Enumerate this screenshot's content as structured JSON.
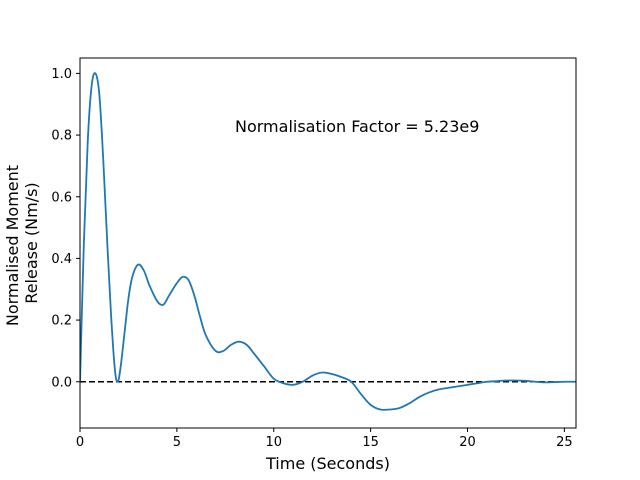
{
  "chart_data": {
    "type": "line",
    "title": "",
    "xlabel": "Time (Seconds)",
    "ylabel_lines": [
      "Normalised Moment",
      "Release (Nm/s)"
    ],
    "xlim": [
      0,
      25.6
    ],
    "ylim": [
      -0.15,
      1.05
    ],
    "xticks": [
      0,
      5,
      10,
      15,
      20,
      25
    ],
    "yticks": [
      0.0,
      0.2,
      0.4,
      0.6,
      0.8,
      1.0
    ],
    "xtick_labels": [
      "0",
      "5",
      "10",
      "15",
      "20",
      "25"
    ],
    "ytick_labels": [
      "0.0",
      "0.2",
      "0.4",
      "0.6",
      "0.8",
      "1.0"
    ],
    "grid": false,
    "annotation": {
      "text": "Normalisation Factor = 5.23e9",
      "x": 8.0,
      "y": 0.81
    },
    "reference_line": {
      "y": 0.0,
      "style": "dashed",
      "color": "#000000"
    },
    "series": [
      {
        "color": "#1f77b4",
        "x": [
          0,
          0.2,
          0.4,
          0.6,
          0.8,
          1.0,
          1.2,
          1.4,
          1.6,
          1.8,
          1.95,
          2.1,
          2.3,
          2.5,
          2.7,
          3.0,
          3.3,
          3.6,
          4.0,
          4.3,
          4.6,
          5.0,
          5.3,
          5.6,
          5.9,
          6.2,
          6.5,
          7.0,
          7.4,
          7.8,
          8.2,
          8.6,
          9.0,
          9.5,
          10.0,
          10.5,
          11.0,
          11.5,
          12.0,
          12.5,
          13.0,
          13.5,
          14.0,
          14.5,
          15.0,
          15.5,
          16.0,
          16.5,
          17.0,
          17.5,
          18.0,
          18.5,
          19.0,
          19.5,
          20.0,
          20.5,
          21.0,
          21.5,
          22.0,
          22.5,
          23.0,
          23.5,
          24.0,
          24.5,
          25.0,
          25.6
        ],
        "y": [
          0.0,
          0.45,
          0.78,
          0.96,
          1.0,
          0.93,
          0.72,
          0.46,
          0.22,
          0.04,
          0.0,
          0.05,
          0.16,
          0.27,
          0.34,
          0.38,
          0.36,
          0.31,
          0.26,
          0.25,
          0.28,
          0.32,
          0.34,
          0.33,
          0.28,
          0.21,
          0.15,
          0.1,
          0.1,
          0.12,
          0.13,
          0.12,
          0.09,
          0.05,
          0.01,
          -0.005,
          -0.01,
          0.0,
          0.02,
          0.03,
          0.025,
          0.015,
          0.0,
          -0.04,
          -0.075,
          -0.09,
          -0.09,
          -0.085,
          -0.07,
          -0.05,
          -0.035,
          -0.025,
          -0.02,
          -0.015,
          -0.01,
          -0.005,
          0.0,
          0.002,
          0.004,
          0.004,
          0.003,
          0.0,
          -0.002,
          -0.001,
          0.0,
          0.0
        ]
      }
    ]
  }
}
